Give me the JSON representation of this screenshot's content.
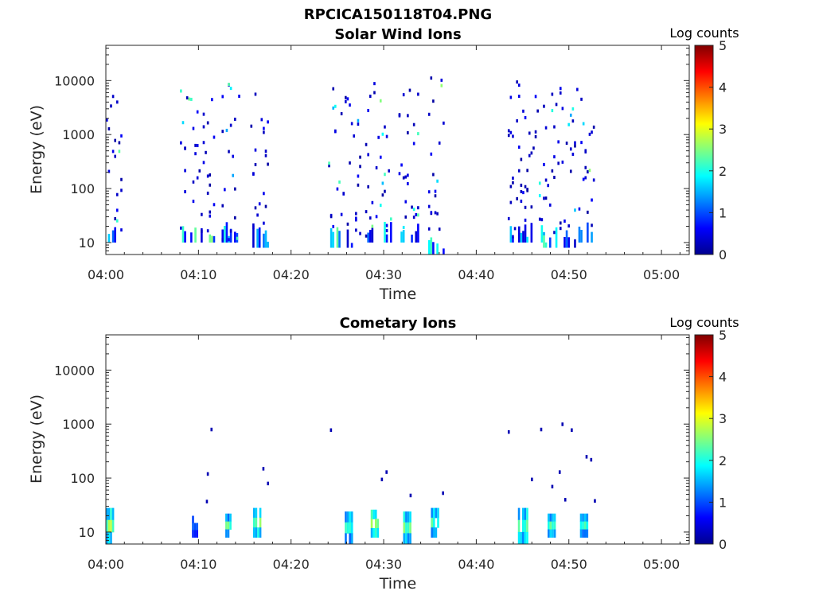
{
  "figure": {
    "title": "RPCICA150118T04.PNG"
  },
  "colormap": [
    "#00008f",
    "#0000ff",
    "#0080ff",
    "#00ffff",
    "#80ff80",
    "#ffff00",
    "#ff8000",
    "#ff0000",
    "#800000"
  ],
  "chart_data": [
    {
      "type": "heatmap",
      "title": "Solar Wind Ions",
      "xlabel": "Time",
      "ylabel": "Energy (eV)",
      "x_ticks": [
        "04:00",
        "04:10",
        "04:20",
        "04:30",
        "04:40",
        "04:50",
        "05:00"
      ],
      "x_tick_minutes": [
        0,
        10,
        20,
        30,
        40,
        50,
        60
      ],
      "xlim_minutes": [
        0,
        63
      ],
      "y_scale": "log",
      "y_ticks": [
        "10",
        "100",
        "1000",
        "10000"
      ],
      "y_tick_values": [
        10,
        100,
        1000,
        10000
      ],
      "ylim": [
        6,
        45000
      ],
      "colorbar": {
        "label": "Log counts",
        "range": [
          0,
          5
        ],
        "ticks": [
          "0",
          "1",
          "2",
          "3",
          "4",
          "5"
        ]
      },
      "bursts": [
        {
          "start_min": 0.0,
          "end_min": 1.7,
          "low_ev": 10,
          "high_ev": 11000,
          "peak_log": 2.3
        },
        {
          "start_min": 8.0,
          "end_min": 11.8,
          "low_ev": 10,
          "high_ev": 7000,
          "peak_log": 2.6
        },
        {
          "start_min": 12.5,
          "end_min": 14.6,
          "low_ev": 10,
          "high_ev": 10000,
          "peak_log": 2.4
        },
        {
          "start_min": 15.6,
          "end_min": 17.6,
          "low_ev": 8,
          "high_ev": 7500,
          "peak_log": 2.2
        },
        {
          "start_min": 24.0,
          "end_min": 27.6,
          "low_ev": 8,
          "high_ev": 9000,
          "peak_log": 2.4
        },
        {
          "start_min": 28.0,
          "end_min": 30.8,
          "low_ev": 10,
          "high_ev": 9500,
          "peak_log": 2.5
        },
        {
          "start_min": 31.6,
          "end_min": 33.8,
          "low_ev": 10,
          "high_ev": 9500,
          "peak_log": 2.1
        },
        {
          "start_min": 34.8,
          "end_min": 36.6,
          "low_ev": 6,
          "high_ev": 13000,
          "peak_log": 2.3
        },
        {
          "start_min": 43.4,
          "end_min": 47.2,
          "low_ev": 10,
          "high_ev": 11000,
          "peak_log": 2.4
        },
        {
          "start_min": 47.2,
          "end_min": 50.8,
          "low_ev": 8,
          "high_ev": 12500,
          "peak_log": 2.5
        },
        {
          "start_min": 50.8,
          "end_min": 52.8,
          "low_ev": 10,
          "high_ev": 9500,
          "peak_log": 2.1
        }
      ]
    },
    {
      "type": "heatmap",
      "title": "Cometary Ions",
      "xlabel": "Time",
      "ylabel": "Energy (eV)",
      "x_ticks": [
        "04:00",
        "04:10",
        "04:20",
        "04:30",
        "04:40",
        "04:50",
        "05:00"
      ],
      "x_tick_minutes": [
        0,
        10,
        20,
        30,
        40,
        50,
        60
      ],
      "xlim_minutes": [
        0,
        63
      ],
      "y_scale": "log",
      "y_ticks": [
        "10",
        "100",
        "1000",
        "10000"
      ],
      "y_tick_values": [
        10,
        100,
        1000,
        10000
      ],
      "ylim": [
        6,
        45000
      ],
      "colorbar": {
        "label": "Log counts",
        "range": [
          0,
          5
        ],
        "ticks": [
          "0",
          "1",
          "2",
          "3",
          "4",
          "5"
        ]
      },
      "bursts": [
        {
          "start_min": 0.0,
          "end_min": 0.8,
          "low_ev": 6,
          "high_ev": 28,
          "peak_log": 2.7
        },
        {
          "start_min": 9.3,
          "end_min": 10.0,
          "low_ev": 8,
          "high_ev": 20,
          "peak_log": 1.3
        },
        {
          "start_min": 12.9,
          "end_min": 13.5,
          "low_ev": 8,
          "high_ev": 22,
          "peak_log": 2.4
        },
        {
          "start_min": 15.9,
          "end_min": 16.9,
          "low_ev": 8,
          "high_ev": 28,
          "peak_log": 2.6
        },
        {
          "start_min": 25.8,
          "end_min": 26.6,
          "low_ev": 6,
          "high_ev": 24,
          "peak_log": 2.2
        },
        {
          "start_min": 28.6,
          "end_min": 29.6,
          "low_ev": 8,
          "high_ev": 26,
          "peak_log": 3.0
        },
        {
          "start_min": 32.1,
          "end_min": 32.9,
          "low_ev": 6,
          "high_ev": 24,
          "peak_log": 2.6
        },
        {
          "start_min": 35.1,
          "end_min": 36.0,
          "low_ev": 8,
          "high_ev": 28,
          "peak_log": 2.4
        },
        {
          "start_min": 44.5,
          "end_min": 45.7,
          "low_ev": 6,
          "high_ev": 28,
          "peak_log": 2.6
        },
        {
          "start_min": 47.7,
          "end_min": 48.5,
          "low_ev": 8,
          "high_ev": 22,
          "peak_log": 2.4
        },
        {
          "start_min": 51.2,
          "end_min": 52.1,
          "low_ev": 8,
          "high_ev": 22,
          "peak_log": 2.2
        }
      ],
      "isolated_points": [
        {
          "t_min": 11.3,
          "ev": 800
        },
        {
          "t_min": 10.9,
          "ev": 120
        },
        {
          "t_min": 10.8,
          "ev": 37
        },
        {
          "t_min": 16.9,
          "ev": 150
        },
        {
          "t_min": 17.4,
          "ev": 80
        },
        {
          "t_min": 24.2,
          "ev": 780
        },
        {
          "t_min": 29.7,
          "ev": 95
        },
        {
          "t_min": 30.2,
          "ev": 130
        },
        {
          "t_min": 32.8,
          "ev": 48
        },
        {
          "t_min": 36.3,
          "ev": 53
        },
        {
          "t_min": 43.4,
          "ev": 720
        },
        {
          "t_min": 45.9,
          "ev": 95
        },
        {
          "t_min": 46.9,
          "ev": 800
        },
        {
          "t_min": 48.1,
          "ev": 70
        },
        {
          "t_min": 48.9,
          "ev": 130
        },
        {
          "t_min": 49.2,
          "ev": 1000
        },
        {
          "t_min": 50.2,
          "ev": 780
        },
        {
          "t_min": 51.8,
          "ev": 250
        },
        {
          "t_min": 52.3,
          "ev": 220
        },
        {
          "t_min": 52.7,
          "ev": 38
        },
        {
          "t_min": 49.5,
          "ev": 40
        }
      ]
    }
  ]
}
